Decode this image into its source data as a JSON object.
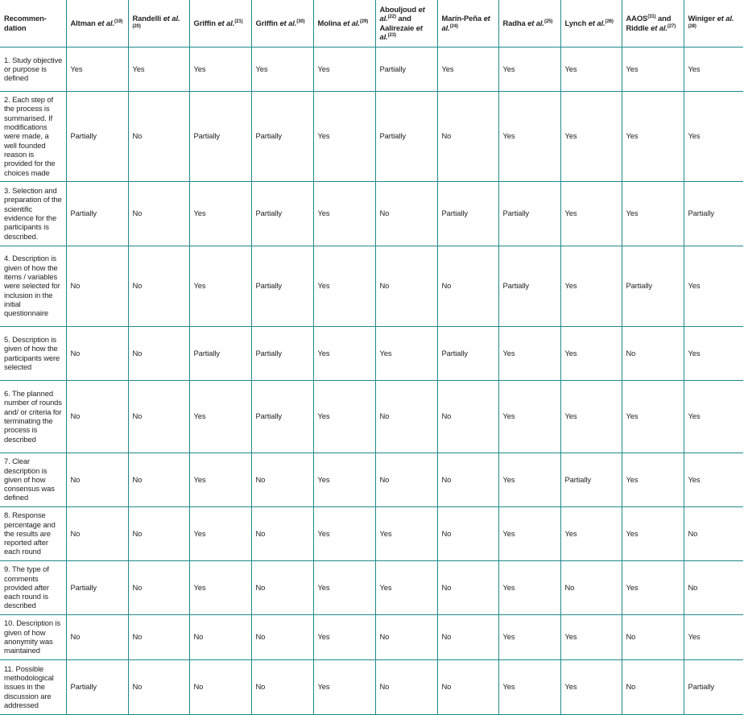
{
  "table": {
    "corner_header": "Recommen-dation",
    "joiner": "and",
    "et_al": "et al.",
    "columns": [
      {
        "authors": [
          {
            "name": "Altman",
            "et_al": true,
            "ref": "(19)"
          }
        ]
      },
      {
        "authors": [
          {
            "name": "Randelli",
            "et_al": true,
            "ref": "(20)"
          }
        ]
      },
      {
        "authors": [
          {
            "name": "Griffin",
            "et_al": true,
            "ref": "(21)"
          }
        ]
      },
      {
        "authors": [
          {
            "name": "Griffin",
            "et_al": true,
            "ref": "(30)"
          }
        ]
      },
      {
        "authors": [
          {
            "name": "Molina",
            "et_al": true,
            "ref": "(29)"
          }
        ]
      },
      {
        "authors": [
          {
            "name": "Abouljoud",
            "et_al": true,
            "ref": "(22)"
          },
          {
            "name": "Aalirezaie",
            "et_al": true,
            "ref": "(23)"
          }
        ]
      },
      {
        "authors": [
          {
            "name": "Marín-Peña",
            "et_al": true,
            "ref": "(24)"
          }
        ]
      },
      {
        "authors": [
          {
            "name": "Radha",
            "et_al": true,
            "ref": "(25)"
          }
        ]
      },
      {
        "authors": [
          {
            "name": "Lynch",
            "et_al": true,
            "ref": "(26)"
          }
        ]
      },
      {
        "authors": [
          {
            "name": "AAOS",
            "et_al": false,
            "ref": "(31)"
          },
          {
            "name": "Riddle",
            "et_al": true,
            "ref": "(27)"
          }
        ]
      },
      {
        "authors": [
          {
            "name": "Winiger",
            "et_al": true,
            "ref": "(28)"
          }
        ]
      }
    ],
    "rows": [
      {
        "label": "1. Study objective or purpose is defined",
        "values": [
          "Yes",
          "Yes",
          "Yes",
          "Yes",
          "Yes",
          "Partially",
          "Yes",
          "Yes",
          "Yes",
          "Yes",
          "Yes"
        ]
      },
      {
        "label": "2. Each step of the process is summarised. If modifications were made, a well founded reason is provided for the choices made",
        "values": [
          "Partially",
          "No",
          "Partially",
          "Partially",
          "Yes",
          "Partially",
          "No",
          "Yes",
          "Yes",
          "Yes",
          "Yes"
        ]
      },
      {
        "label": "3. Selection and preparation of the scientific evidence for the participants is described.",
        "values": [
          "Partially",
          "No",
          "Yes",
          "Partially",
          "Yes",
          "No",
          "Partially",
          "Partially",
          "Yes",
          "Yes",
          "Partially"
        ]
      },
      {
        "label": "4. Description is given of how the items / variables were selected for inclusion in the initial questionnaire",
        "values": [
          "No",
          "No",
          "Yes",
          "Partially",
          "Yes",
          "No",
          "No",
          "Partially",
          "Yes",
          "Partially",
          "Yes"
        ]
      },
      {
        "label": "5. Description is given of how the participants were selected",
        "values": [
          "No",
          "No",
          "Partially",
          "Partially",
          "Yes",
          "Yes",
          "Partially",
          "Yes",
          "Yes",
          "No",
          "Yes"
        ]
      },
      {
        "label": "6. The planned number of rounds and/ or criteria for terminating the process is described",
        "values": [
          "No",
          "No",
          "Yes",
          "Partially",
          "Yes",
          "No",
          "No",
          "Yes",
          "Yes",
          "Yes",
          "Yes"
        ]
      },
      {
        "label": "7. Clear description is given of how consensus was defined",
        "values": [
          "No",
          "No",
          "Yes",
          "No",
          "Yes",
          "No",
          "No",
          "Yes",
          "Partially",
          "Yes",
          "Yes"
        ]
      },
      {
        "label": "8. Response percentage and the results are reported after each round",
        "values": [
          "No",
          "No",
          "Yes",
          "No",
          "Yes",
          "Yes",
          "No",
          "Yes",
          "Yes",
          "Yes",
          "No"
        ]
      },
      {
        "label": "9. The type of comments provided after each round is described",
        "values": [
          "Partially",
          "No",
          "Yes",
          "No",
          "Yes",
          "Yes",
          "No",
          "Yes",
          "No",
          "Yes",
          "No"
        ]
      },
      {
        "label": "10. Description is given of how anonymity was maintained",
        "values": [
          "No",
          "No",
          "No",
          "No",
          "Yes",
          "No",
          "No",
          "Yes",
          "Yes",
          "No",
          "Yes"
        ]
      },
      {
        "label": "11. Possible methodological issues in the discussion are addressed",
        "values": [
          "Partially",
          "No",
          "No",
          "No",
          "Yes",
          "No",
          "No",
          "Yes",
          "Yes",
          "No",
          "Partially"
        ]
      }
    ]
  }
}
